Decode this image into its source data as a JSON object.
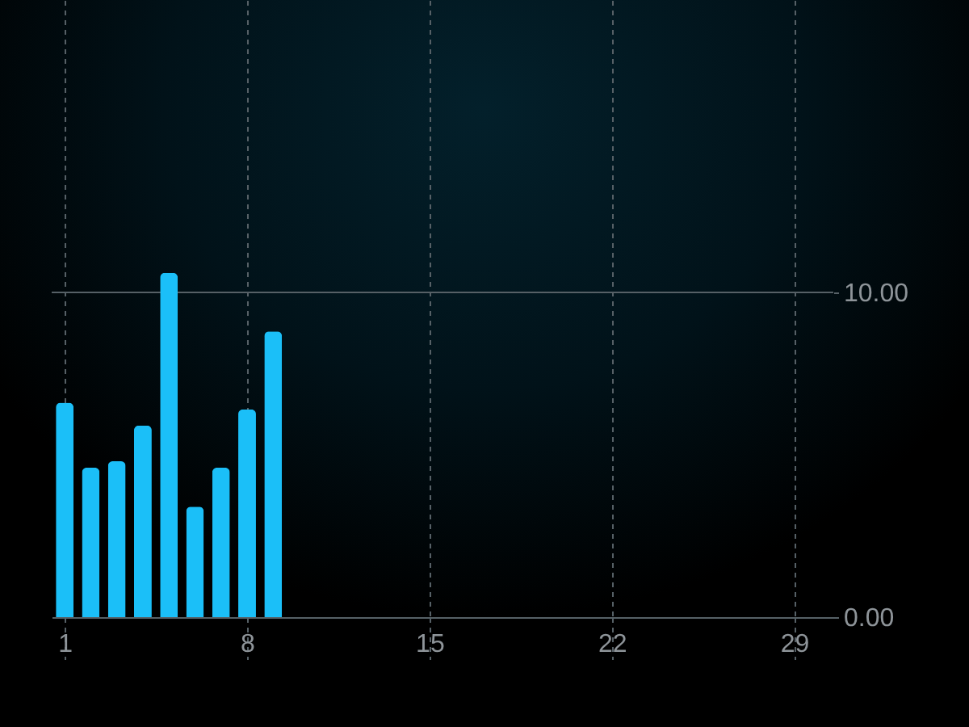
{
  "chart_data": {
    "type": "bar",
    "x": [
      1,
      2,
      3,
      4,
      5,
      6,
      7,
      8,
      9
    ],
    "values": [
      6.6,
      4.6,
      4.8,
      5.9,
      10.6,
      3.4,
      4.6,
      6.4,
      8.8
    ],
    "color": "#1bbff8",
    "xlim": [
      0.5,
      30.5
    ],
    "xticks": [
      1,
      8,
      15,
      22,
      29
    ],
    "ylim": [
      0,
      19
    ],
    "yticks": [
      {
        "value": 0,
        "label": "0.00"
      },
      {
        "value": 10,
        "label": "10.00"
      }
    ],
    "grid": "x",
    "ref_lines": [
      {
        "axis": "y",
        "value": 10,
        "color": "#566066"
      }
    ]
  }
}
